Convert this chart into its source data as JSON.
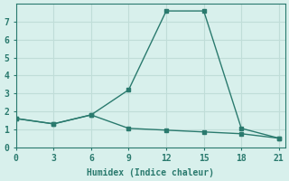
{
  "xlabel": "Humidex (Indice chaleur)",
  "background_color": "#d8f0ec",
  "grid_color": "#c0ddd8",
  "line_color": "#2a7a6e",
  "line1_x": [
    0,
    3,
    6,
    9,
    12,
    15,
    18,
    21
  ],
  "line1_y": [
    1.6,
    1.3,
    1.8,
    3.2,
    7.6,
    7.6,
    1.05,
    0.5
  ],
  "line2_x": [
    0,
    3,
    6,
    9,
    12,
    15,
    18,
    21
  ],
  "line2_y": [
    1.6,
    1.3,
    1.8,
    1.05,
    0.95,
    0.85,
    0.75,
    0.5
  ],
  "xlim": [
    0,
    21.5
  ],
  "ylim": [
    0,
    8
  ],
  "xticks": [
    0,
    3,
    6,
    9,
    12,
    15,
    18,
    21
  ],
  "yticks": [
    0,
    1,
    2,
    3,
    4,
    5,
    6,
    7
  ],
  "marker": "s",
  "marker_size": 3,
  "line_width": 1.0,
  "tick_fontsize": 7,
  "xlabel_fontsize": 7
}
